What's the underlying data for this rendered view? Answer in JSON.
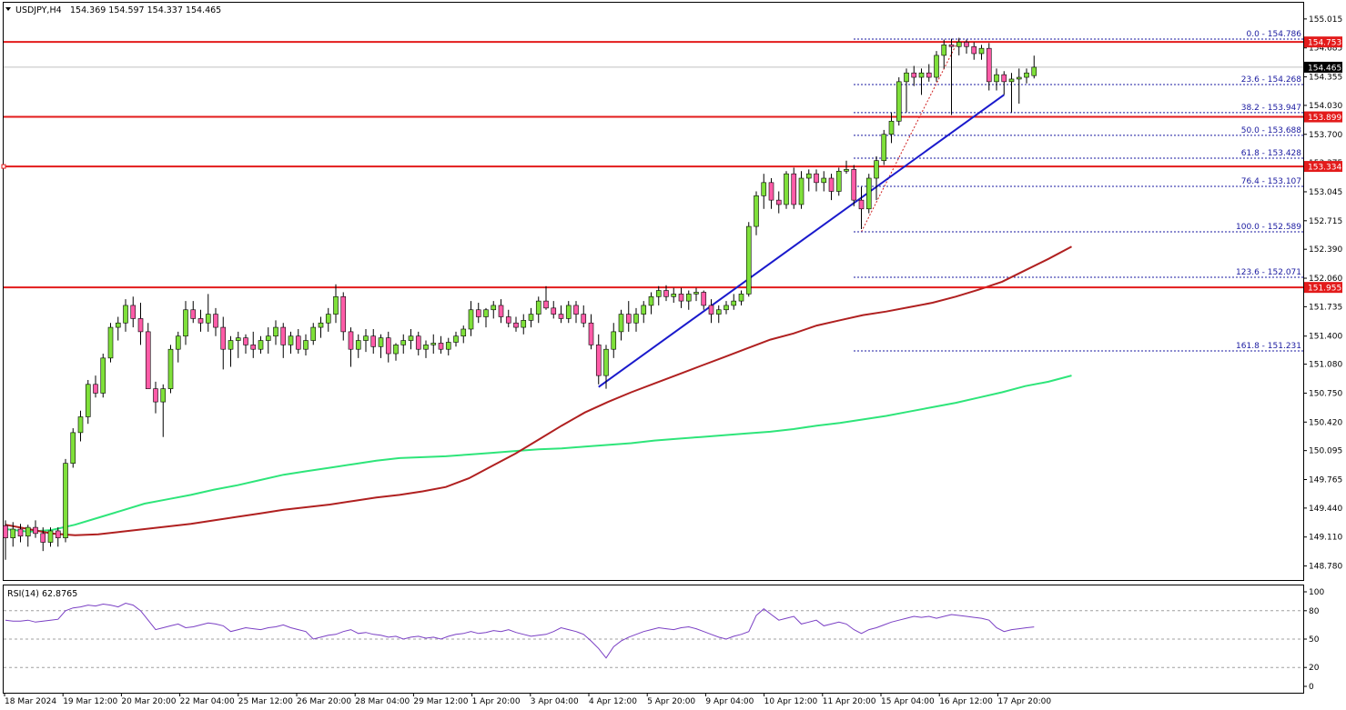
{
  "header": {
    "symbol": "USDJPY,H4",
    "ohlc": "154.369 154.597 154.337 154.465"
  },
  "colors": {
    "bull_body": "#7fe03a",
    "bear_body": "#ff5ca8",
    "wick": "#000000",
    "horizontal_level": "#e31b1b",
    "trendline": "#1a1acc",
    "ma_red": "#b02020",
    "ma_green": "#2ee57a",
    "fib_line": "#1a1aa0",
    "rsi_line": "#7a3fc4",
    "tag_red": "#e31b1b"
  },
  "chart_data": [
    {
      "type": "candlestick",
      "title": "USDJPY,H4",
      "ylim": [
        148.62,
        155.2
      ],
      "y_ticks": [
        "155.015",
        "154.685",
        "154.355",
        "154.030",
        "153.700",
        "153.375",
        "153.045",
        "152.715",
        "152.390",
        "152.060",
        "151.735",
        "151.400",
        "151.080",
        "150.750",
        "150.420",
        "150.095",
        "149.765",
        "149.440",
        "149.110",
        "148.780"
      ],
      "x_labels": [
        "18 Mar 2024",
        "19 Mar 12:00",
        "20 Mar 20:00",
        "22 Mar 04:00",
        "25 Mar 12:00",
        "26 Mar 20:00",
        "28 Mar 04:00",
        "29 Mar 12:00",
        "1 Apr 20:00",
        "3 Apr 04:00",
        "4 Apr 12:00",
        "5 Apr 20:00",
        "9 Apr 04:00",
        "10 Apr 12:00",
        "11 Apr 20:00",
        "15 Apr 04:00",
        "16 Apr 12:00",
        "17 Apr 20:00"
      ],
      "candles": [
        [
          149.24,
          149.3,
          148.85,
          149.1
        ],
        [
          149.1,
          149.28,
          149.0,
          149.2
        ],
        [
          149.2,
          149.26,
          149.05,
          149.12
        ],
        [
          149.12,
          149.25,
          149.0,
          149.22
        ],
        [
          149.22,
          149.3,
          149.1,
          149.15
        ],
        [
          149.15,
          149.22,
          148.95,
          149.05
        ],
        [
          149.05,
          149.22,
          149.0,
          149.18
        ],
        [
          149.18,
          149.22,
          149.0,
          149.1
        ],
        [
          149.1,
          150.0,
          149.05,
          149.95
        ],
        [
          149.95,
          150.35,
          149.9,
          150.3
        ],
        [
          150.3,
          150.55,
          150.2,
          150.48
        ],
        [
          150.48,
          150.9,
          150.4,
          150.85
        ],
        [
          150.85,
          150.95,
          150.7,
          150.75
        ],
        [
          150.75,
          151.2,
          150.7,
          151.15
        ],
        [
          151.15,
          151.55,
          151.1,
          151.5
        ],
        [
          151.5,
          151.62,
          151.35,
          151.55
        ],
        [
          151.55,
          151.82,
          151.45,
          151.75
        ],
        [
          151.75,
          151.85,
          151.5,
          151.6
        ],
        [
          151.6,
          151.78,
          151.3,
          151.45
        ],
        [
          151.45,
          151.55,
          150.85,
          150.8
        ],
        [
          150.8,
          150.88,
          150.52,
          150.65
        ],
        [
          150.65,
          150.85,
          150.25,
          150.8
        ],
        [
          150.8,
          151.3,
          150.75,
          151.25
        ],
        [
          151.25,
          151.45,
          151.1,
          151.4
        ],
        [
          151.4,
          151.8,
          151.3,
          151.7
        ],
        [
          151.7,
          151.8,
          151.55,
          151.6
        ],
        [
          151.6,
          151.7,
          151.45,
          151.55
        ],
        [
          151.55,
          151.88,
          151.45,
          151.65
        ],
        [
          151.65,
          151.72,
          151.4,
          151.5
        ],
        [
          151.5,
          151.62,
          151.02,
          151.25
        ],
        [
          151.25,
          151.4,
          151.05,
          151.35
        ],
        [
          151.35,
          151.45,
          151.15,
          151.38
        ],
        [
          151.38,
          151.42,
          151.2,
          151.3
        ],
        [
          151.3,
          151.45,
          151.15,
          151.25
        ],
        [
          151.25,
          151.4,
          151.2,
          151.35
        ],
        [
          151.35,
          151.5,
          151.2,
          151.4
        ],
        [
          151.4,
          151.58,
          151.3,
          151.5
        ],
        [
          151.5,
          151.55,
          151.15,
          151.3
        ],
        [
          151.3,
          151.45,
          151.2,
          151.4
        ],
        [
          151.4,
          151.48,
          151.2,
          151.25
        ],
        [
          151.25,
          151.42,
          151.18,
          151.35
        ],
        [
          151.35,
          151.55,
          151.3,
          151.5
        ],
        [
          151.5,
          151.62,
          151.38,
          151.55
        ],
        [
          151.55,
          151.72,
          151.45,
          151.65
        ],
        [
          151.65,
          151.99,
          151.55,
          151.85
        ],
        [
          151.85,
          151.9,
          151.35,
          151.45
        ],
        [
          151.45,
          151.5,
          151.05,
          151.25
        ],
        [
          151.25,
          151.42,
          151.15,
          151.35
        ],
        [
          151.35,
          151.48,
          151.22,
          151.4
        ],
        [
          151.4,
          151.48,
          151.2,
          151.28
        ],
        [
          151.28,
          151.42,
          151.15,
          151.38
        ],
        [
          151.38,
          151.45,
          151.1,
          151.2
        ],
        [
          151.2,
          151.32,
          151.12,
          151.3
        ],
        [
          151.3,
          151.42,
          151.2,
          151.35
        ],
        [
          151.35,
          151.48,
          151.25,
          151.4
        ],
        [
          151.4,
          151.45,
          151.18,
          151.25
        ],
        [
          151.25,
          151.35,
          151.15,
          151.3
        ],
        [
          151.3,
          151.42,
          151.2,
          151.32
        ],
        [
          151.32,
          151.4,
          151.2,
          151.25
        ],
        [
          151.25,
          151.38,
          151.18,
          151.33
        ],
        [
          151.33,
          151.45,
          151.28,
          151.4
        ],
        [
          151.4,
          151.52,
          151.32,
          151.48
        ],
        [
          151.48,
          151.8,
          151.4,
          151.7
        ],
        [
          151.7,
          151.78,
          151.55,
          151.62
        ],
        [
          151.62,
          151.72,
          151.5,
          151.7
        ],
        [
          151.7,
          151.8,
          151.6,
          151.75
        ],
        [
          151.75,
          151.82,
          151.55,
          151.62
        ],
        [
          151.62,
          151.7,
          151.5,
          151.55
        ],
        [
          151.55,
          151.62,
          151.45,
          151.5
        ],
        [
          151.5,
          151.65,
          151.42,
          151.58
        ],
        [
          151.58,
          151.72,
          151.5,
          151.65
        ],
        [
          151.65,
          151.85,
          151.55,
          151.8
        ],
        [
          151.8,
          151.97,
          151.7,
          151.72
        ],
        [
          151.72,
          151.8,
          151.6,
          151.65
        ],
        [
          151.65,
          151.75,
          151.55,
          151.6
        ],
        [
          151.6,
          151.8,
          151.55,
          151.75
        ],
        [
          151.75,
          151.8,
          151.55,
          151.65
        ],
        [
          151.65,
          151.75,
          151.5,
          151.55
        ],
        [
          151.55,
          151.65,
          151.25,
          151.3
        ],
        [
          151.3,
          151.42,
          150.85,
          150.95
        ],
        [
          150.95,
          151.3,
          150.8,
          151.25
        ],
        [
          151.25,
          151.55,
          151.15,
          151.45
        ],
        [
          151.45,
          151.7,
          151.35,
          151.65
        ],
        [
          151.65,
          151.8,
          151.45,
          151.55
        ],
        [
          151.55,
          151.72,
          151.45,
          151.65
        ],
        [
          151.65,
          151.8,
          151.55,
          151.75
        ],
        [
          151.75,
          151.9,
          151.65,
          151.85
        ],
        [
          151.85,
          151.97,
          151.75,
          151.92
        ],
        [
          151.92,
          151.98,
          151.8,
          151.85
        ],
        [
          151.85,
          151.95,
          151.78,
          151.88
        ],
        [
          151.88,
          151.95,
          151.72,
          151.8
        ],
        [
          151.8,
          151.92,
          151.7,
          151.88
        ],
        [
          151.88,
          151.95,
          151.8,
          151.9
        ],
        [
          151.9,
          151.92,
          151.7,
          151.75
        ],
        [
          151.75,
          151.82,
          151.55,
          151.65
        ],
        [
          151.65,
          151.75,
          151.55,
          151.7
        ],
        [
          151.7,
          151.8,
          151.65,
          151.75
        ],
        [
          151.75,
          151.88,
          151.7,
          151.8
        ],
        [
          151.8,
          151.92,
          151.75,
          151.88
        ],
        [
          151.88,
          152.7,
          151.85,
          152.65
        ],
        [
          152.65,
          153.05,
          152.55,
          153.0
        ],
        [
          153.0,
          153.25,
          152.85,
          153.15
        ],
        [
          153.15,
          153.2,
          152.85,
          152.95
        ],
        [
          152.95,
          153.05,
          152.8,
          152.9
        ],
        [
          152.9,
          153.28,
          152.85,
          153.25
        ],
        [
          153.25,
          153.32,
          152.85,
          152.9
        ],
        [
          152.9,
          153.28,
          152.85,
          153.2
        ],
        [
          153.2,
          153.3,
          153.05,
          153.25
        ],
        [
          153.25,
          153.3,
          153.05,
          153.15
        ],
        [
          153.15,
          153.28,
          153.05,
          153.2
        ],
        [
          153.2,
          153.25,
          152.95,
          153.05
        ],
        [
          153.05,
          153.32,
          153.0,
          153.28
        ],
        [
          153.28,
          153.4,
          153.25,
          153.3
        ],
        [
          153.3,
          153.35,
          152.88,
          152.95
        ],
        [
          152.95,
          153.1,
          152.62,
          152.85
        ],
        [
          152.85,
          153.25,
          152.8,
          153.2
        ],
        [
          153.2,
          153.45,
          152.95,
          153.4
        ],
        [
          153.4,
          153.75,
          153.35,
          153.7
        ],
        [
          153.7,
          153.95,
          153.6,
          153.85
        ],
        [
          153.85,
          154.35,
          153.8,
          154.3
        ],
        [
          154.3,
          154.45,
          153.95,
          154.4
        ],
        [
          154.4,
          154.48,
          154.25,
          154.35
        ],
        [
          154.35,
          154.45,
          154.15,
          154.4
        ],
        [
          154.4,
          154.5,
          154.3,
          154.35
        ],
        [
          154.35,
          154.65,
          154.3,
          154.6
        ],
        [
          154.6,
          154.78,
          154.45,
          154.72
        ],
        [
          154.72,
          154.79,
          153.92,
          154.7
        ],
        [
          154.7,
          154.8,
          154.6,
          154.75
        ],
        [
          154.75,
          154.78,
          154.62,
          154.7
        ],
        [
          154.7,
          154.75,
          154.55,
          154.62
        ],
        [
          154.62,
          154.72,
          154.55,
          154.68
        ],
        [
          154.68,
          154.74,
          154.2,
          154.3
        ],
        [
          154.3,
          154.45,
          154.2,
          154.38
        ],
        [
          154.38,
          154.42,
          154.15,
          154.3
        ],
        [
          154.3,
          154.4,
          153.95,
          154.33
        ],
        [
          154.33,
          154.45,
          154.05,
          154.35
        ],
        [
          154.35,
          154.45,
          154.28,
          154.4
        ],
        [
          154.369,
          154.597,
          154.337,
          154.465
        ]
      ],
      "horizontal_levels": [
        "154.753",
        "153.899",
        "153.334",
        "151.955"
      ],
      "fibonacci": {
        "levels": [
          {
            "value": 154.786,
            "label": "0.0 - 154.786"
          },
          {
            "value": 154.268,
            "label": "23.6 - 154.268"
          },
          {
            "value": 153.947,
            "label": "38.2 - 153.947"
          },
          {
            "value": 153.688,
            "label": "50.0 - 153.688"
          },
          {
            "value": 153.428,
            "label": "61.8 - 153.428"
          },
          {
            "value": 153.107,
            "label": "76.4 - 153.107"
          },
          {
            "value": 152.589,
            "label": "100.0 - 152.589"
          },
          {
            "value": 152.071,
            "label": "123.6 - 152.071"
          },
          {
            "value": 151.231,
            "label": "161.8 - 151.231"
          }
        ]
      },
      "trendline": {
        "from": [
          79,
          150.82
        ],
        "to": [
          133,
          154.15
        ]
      },
      "ma_red": [
        149.25,
        149.2,
        149.15,
        149.13,
        149.14,
        149.17,
        149.2,
        149.23,
        149.26,
        149.3,
        149.34,
        149.38,
        149.42,
        149.45,
        149.48,
        149.52,
        149.56,
        149.59,
        149.63,
        149.68,
        149.78,
        149.92,
        150.06,
        150.22,
        150.38,
        150.53,
        150.65,
        150.76,
        150.86,
        150.96,
        151.06,
        151.16,
        151.26,
        151.36,
        151.43,
        151.52,
        151.58,
        151.64,
        151.68,
        151.73,
        151.78,
        151.85,
        151.93,
        152.02,
        152.15,
        152.28,
        152.42
      ],
      "ma_green": [
        149.2,
        149.17,
        149.19,
        149.25,
        149.33,
        149.41,
        149.49,
        149.54,
        149.59,
        149.65,
        149.7,
        149.76,
        149.82,
        149.86,
        149.9,
        149.94,
        149.98,
        150.01,
        150.02,
        150.03,
        150.05,
        150.07,
        150.09,
        150.11,
        150.12,
        150.14,
        150.16,
        150.18,
        150.21,
        150.23,
        150.25,
        150.27,
        150.29,
        150.31,
        150.34,
        150.38,
        150.41,
        150.45,
        150.49,
        150.54,
        150.59,
        150.64,
        150.7,
        150.76,
        150.83,
        150.88,
        150.95
      ],
      "last_price_tag": "154.465"
    },
    {
      "type": "line",
      "title": "RSI(14) 62.8765",
      "ylim": [
        0,
        100
      ],
      "y_ticks": [
        "100",
        "80",
        "50",
        "20",
        "0"
      ],
      "guide_levels": [
        80,
        50,
        20
      ],
      "values": [
        70,
        69,
        69,
        70,
        68,
        69,
        70,
        71,
        80,
        83,
        84,
        86,
        85,
        87,
        86,
        84,
        88,
        86,
        80,
        70,
        60,
        62,
        64,
        66,
        62,
        63,
        65,
        67,
        66,
        64,
        58,
        60,
        62,
        61,
        60,
        62,
        63,
        65,
        62,
        60,
        58,
        50,
        52,
        54,
        55,
        58,
        60,
        56,
        57,
        55,
        54,
        52,
        53,
        50,
        52,
        53,
        51,
        52,
        50,
        53,
        55,
        56,
        58,
        56,
        57,
        59,
        58,
        60,
        57,
        55,
        53,
        54,
        55,
        58,
        62,
        60,
        58,
        55,
        48,
        40,
        30,
        42,
        48,
        52,
        55,
        58,
        60,
        62,
        61,
        60,
        62,
        63,
        61,
        58,
        55,
        52,
        50,
        53,
        55,
        58,
        75,
        82,
        76,
        70,
        72,
        74,
        66,
        68,
        70,
        64,
        66,
        68,
        66,
        60,
        56,
        60,
        62,
        65,
        68,
        70,
        72,
        74,
        73,
        74,
        72,
        74,
        76,
        75,
        74,
        73,
        72,
        70,
        62,
        58,
        60,
        61,
        62,
        62.8765
      ]
    }
  ]
}
